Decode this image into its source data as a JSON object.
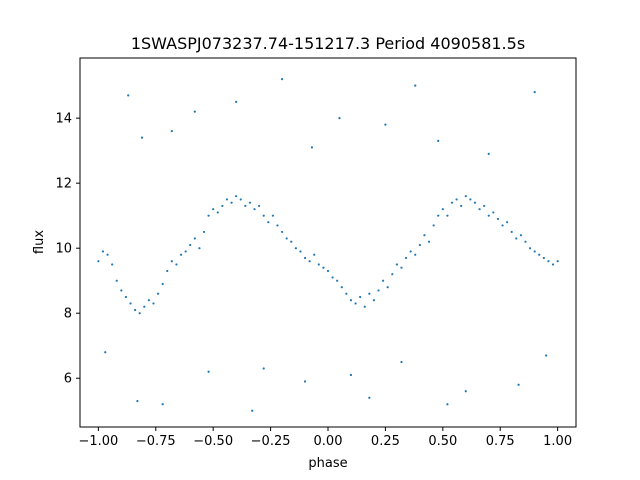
{
  "chart_data": {
    "type": "scatter",
    "title": "1SWASPJ073237.74-151217.3 Period 4090581.5s",
    "xlabel": "phase",
    "ylabel": "flux",
    "xlim": [
      -1.08,
      1.08
    ],
    "ylim": [
      4.5,
      15.85
    ],
    "xticks": [
      -1.0,
      -0.75,
      -0.5,
      -0.25,
      0.0,
      0.25,
      0.5,
      0.75,
      1.0
    ],
    "xtick_labels": [
      "−1.00",
      "−0.75",
      "−0.50",
      "−0.25",
      "0.00",
      "0.25",
      "0.50",
      "0.75",
      "1.00"
    ],
    "yticks": [
      6,
      8,
      10,
      12,
      14
    ],
    "ytick_labels": [
      "6",
      "8",
      "10",
      "12",
      "14"
    ],
    "grid": false,
    "marker_color": "#1f77b4",
    "series": [
      {
        "x": [
          -1.0,
          -0.98,
          -0.96,
          -0.94,
          -0.92,
          -0.9,
          -0.88,
          -0.86,
          -0.84,
          -0.82,
          -0.8,
          -0.78,
          -0.76,
          -0.74,
          -0.72,
          -0.7,
          -0.68,
          -0.66,
          -0.64,
          -0.62,
          -0.6,
          -0.58,
          -0.56,
          -0.54,
          -0.52,
          -0.5,
          -0.48,
          -0.46,
          -0.44,
          -0.42,
          -0.4,
          -0.38,
          -0.36,
          -0.34,
          -0.32,
          -0.3,
          -0.28,
          -0.26,
          -0.24,
          -0.22,
          -0.2,
          -0.18,
          -0.16,
          -0.14,
          -0.12,
          -0.1,
          -0.08,
          -0.06,
          -0.04,
          -0.02,
          0.0,
          0.02,
          0.04,
          0.06,
          0.08,
          0.1,
          0.12,
          0.14,
          0.16,
          0.18,
          0.2,
          0.22,
          0.24,
          0.26,
          0.28,
          0.3,
          0.32,
          0.34,
          0.36,
          0.38,
          0.4,
          0.42,
          0.44,
          0.46,
          0.48,
          0.5,
          0.52,
          0.54,
          0.56,
          0.58,
          0.6,
          0.62,
          0.64,
          0.66,
          0.68,
          0.7,
          0.72,
          0.74,
          0.76,
          0.78,
          0.8,
          0.82,
          0.84,
          0.86,
          0.88,
          0.9,
          0.92,
          0.94,
          0.96,
          0.98,
          1.0
        ],
        "y": [
          9.6,
          9.9,
          9.8,
          9.5,
          9.0,
          8.7,
          8.5,
          8.3,
          8.1,
          8.0,
          8.2,
          8.4,
          8.3,
          8.6,
          8.9,
          9.3,
          9.6,
          9.5,
          9.8,
          9.9,
          10.1,
          10.3,
          10.0,
          10.5,
          11.0,
          11.2,
          11.1,
          11.3,
          11.5,
          11.4,
          11.6,
          11.5,
          11.3,
          11.4,
          11.2,
          11.3,
          11.0,
          10.8,
          11.0,
          10.7,
          10.5,
          10.3,
          10.2,
          10.0,
          9.9,
          9.7,
          9.6,
          9.8,
          9.5,
          9.4,
          9.3,
          9.1,
          9.0,
          8.8,
          8.6,
          8.4,
          8.3,
          8.5,
          8.2,
          8.6,
          8.4,
          8.7,
          9.0,
          8.8,
          9.2,
          9.5,
          9.4,
          9.7,
          9.9,
          9.8,
          10.1,
          10.4,
          10.2,
          10.7,
          11.0,
          11.2,
          11.0,
          11.4,
          11.5,
          11.3,
          11.6,
          11.5,
          11.4,
          11.2,
          11.3,
          11.0,
          11.1,
          10.9,
          10.7,
          10.8,
          10.5,
          10.3,
          10.4,
          10.2,
          10.0,
          9.9,
          9.8,
          9.7,
          9.6,
          9.5,
          9.6
        ]
      },
      {
        "x": [
          -0.97,
          -0.87,
          -0.83,
          -0.81,
          -0.72,
          -0.68,
          -0.58,
          -0.52,
          -0.4,
          -0.33,
          -0.28,
          -0.2,
          -0.1,
          -0.07,
          0.05,
          0.1,
          0.18,
          0.25,
          0.32,
          0.38,
          0.48,
          0.52,
          0.6,
          0.7,
          0.83,
          0.9,
          0.95
        ],
        "y": [
          6.8,
          14.7,
          5.3,
          13.4,
          5.2,
          13.6,
          14.2,
          6.2,
          14.5,
          5.0,
          6.3,
          15.2,
          5.9,
          13.1,
          14.0,
          6.1,
          5.4,
          13.8,
          6.5,
          15.0,
          13.3,
          5.2,
          5.6,
          12.9,
          5.8,
          14.8,
          6.7
        ]
      }
    ]
  }
}
